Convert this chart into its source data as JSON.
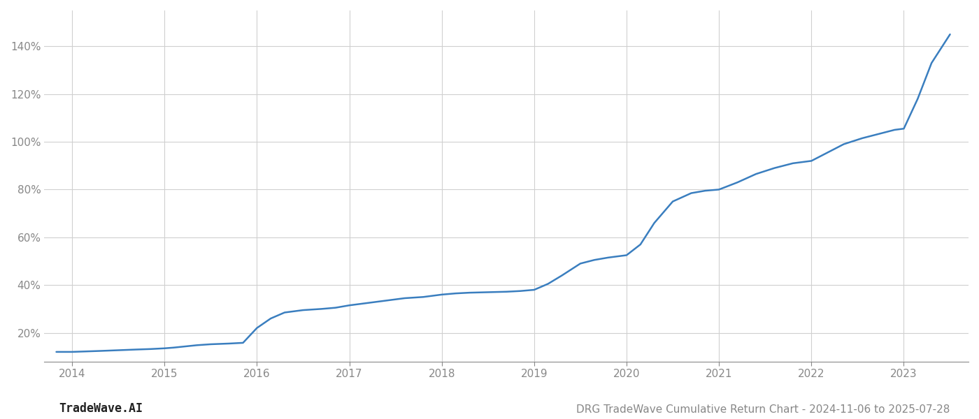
{
  "title": "DRG TradeWave Cumulative Return Chart - 2024-11-06 to 2025-07-28",
  "watermark": "TradeWave.AI",
  "line_color": "#3a7ebf",
  "background_color": "#ffffff",
  "grid_color": "#d0d0d0",
  "x_years": [
    2014,
    2015,
    2016,
    2017,
    2018,
    2019,
    2020,
    2021,
    2022,
    2023
  ],
  "x_data": [
    2013.83,
    2014.0,
    2014.15,
    2014.3,
    2014.5,
    2014.7,
    2014.85,
    2015.0,
    2015.1,
    2015.2,
    2015.35,
    2015.5,
    2015.7,
    2015.85,
    2016.0,
    2016.15,
    2016.3,
    2016.5,
    2016.7,
    2016.85,
    2017.0,
    2017.2,
    2017.4,
    2017.6,
    2017.8,
    2017.9,
    2018.0,
    2018.15,
    2018.3,
    2018.5,
    2018.7,
    2018.85,
    2019.0,
    2019.15,
    2019.3,
    2019.5,
    2019.65,
    2019.8,
    2020.0,
    2020.15,
    2020.3,
    2020.5,
    2020.7,
    2020.85,
    2021.0,
    2021.2,
    2021.4,
    2021.6,
    2021.8,
    2022.0,
    2022.15,
    2022.35,
    2022.55,
    2022.75,
    2022.9,
    2023.0,
    2023.15,
    2023.3,
    2023.5
  ],
  "y_data": [
    12,
    12,
    12.2,
    12.4,
    12.7,
    13.0,
    13.2,
    13.5,
    13.8,
    14.2,
    14.8,
    15.2,
    15.5,
    15.8,
    22,
    26,
    28.5,
    29.5,
    30.0,
    30.5,
    31.5,
    32.5,
    33.5,
    34.5,
    35.0,
    35.5,
    36.0,
    36.5,
    36.8,
    37.0,
    37.2,
    37.5,
    38.0,
    40.5,
    44.0,
    49.0,
    50.5,
    51.5,
    52.5,
    57.0,
    66.0,
    75.0,
    78.5,
    79.5,
    80.0,
    83.0,
    86.5,
    89.0,
    91.0,
    92.0,
    95.0,
    99.0,
    101.5,
    103.5,
    105.0,
    105.5,
    118.0,
    133.0,
    145.0
  ],
  "ylim": [
    8,
    155
  ],
  "yticks": [
    20,
    40,
    60,
    80,
    100,
    120,
    140
  ],
  "xlim": [
    2013.7,
    2023.7
  ],
  "title_fontsize": 11,
  "watermark_fontsize": 12,
  "tick_fontsize": 11,
  "line_width": 1.8
}
